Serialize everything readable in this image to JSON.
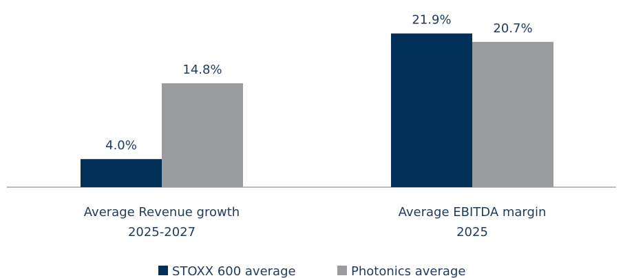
{
  "chart_data": {
    "type": "bar",
    "categories": [
      "Average Revenue growth\n2025-2027",
      "Average EBITDA margin\n2025"
    ],
    "series": [
      {
        "name": "STOXX 600 average",
        "color": "#003057",
        "values": [
          4.0,
          21.9
        ],
        "value_labels": [
          "4.0%",
          "21.9%"
        ]
      },
      {
        "name": "Photonics average",
        "color": "#999b9e",
        "values": [
          14.8,
          20.7
        ],
        "value_labels": [
          "14.8%",
          "20.7%"
        ]
      }
    ]
  }
}
